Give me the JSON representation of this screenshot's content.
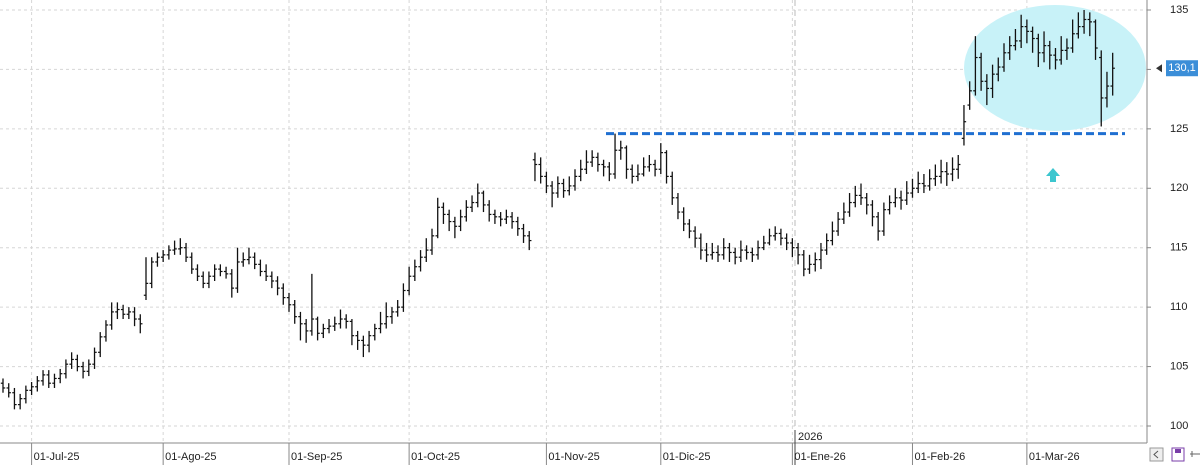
{
  "chart_data": {
    "type": "ohlc",
    "color": "#111111",
    "categories": [
      null,
      null,
      null,
      null,
      null,
      "01-Jul-25",
      null,
      null,
      null,
      null,
      null,
      null,
      null,
      null,
      null,
      null,
      null,
      null,
      null,
      null,
      null,
      null,
      null,
      null,
      null,
      null,
      null,
      null,
      "01-Ago-25",
      null,
      null,
      null,
      null,
      null,
      null,
      null,
      null,
      null,
      null,
      null,
      null,
      null,
      null,
      null,
      null,
      null,
      null,
      null,
      null,
      null,
      "01-Sep-25",
      null,
      null,
      null,
      null,
      null,
      null,
      null,
      null,
      null,
      null,
      null,
      null,
      null,
      null,
      null,
      null,
      null,
      null,
      null,
      null,
      "01-Oct-25",
      null,
      null,
      null,
      null,
      null,
      null,
      null,
      null,
      null,
      null,
      null,
      null,
      null,
      null,
      null,
      null,
      null,
      null,
      null,
      null,
      null,
      null,
      null,
      "01-Nov-25",
      null,
      null,
      null,
      null,
      null,
      null,
      null,
      null,
      null,
      null,
      null,
      null,
      null,
      null,
      null,
      null,
      null,
      null,
      null,
      "01-Dic-25",
      null,
      null,
      null,
      null,
      null,
      null,
      null,
      null,
      null,
      null,
      null,
      null,
      null,
      null,
      null,
      null,
      null,
      null,
      null,
      null,
      null,
      null,
      "01-Ene-26",
      null,
      null,
      null,
      null,
      null,
      null,
      null,
      null,
      null,
      null,
      null,
      null,
      null,
      null,
      null,
      null,
      null,
      null,
      null,
      null,
      "01-Feb-26",
      null,
      null,
      null,
      null,
      null,
      null,
      null,
      null,
      null,
      null,
      null,
      null,
      null,
      null,
      null,
      null,
      null,
      null,
      null,
      "01-Mar-26",
      null,
      null,
      null,
      null,
      null,
      null,
      null,
      null,
      null,
      null,
      null,
      null,
      null,
      null,
      null
    ],
    "ohlc": [
      [
        103.6,
        104.0,
        102.8,
        103.2
      ],
      [
        103.2,
        103.6,
        102.4,
        102.8
      ],
      [
        102.8,
        103.2,
        101.4,
        101.8
      ],
      [
        101.8,
        102.7,
        101.4,
        102.3
      ],
      [
        102.3,
        103.4,
        101.9,
        103.0
      ],
      [
        103.0,
        103.7,
        102.6,
        103.3
      ],
      [
        103.3,
        104.2,
        102.9,
        103.8
      ],
      [
        103.8,
        104.7,
        103.4,
        104.3
      ],
      [
        104.3,
        104.7,
        103.2,
        103.6
      ],
      [
        103.6,
        104.4,
        103.2,
        104.0
      ],
      [
        104.0,
        104.8,
        103.6,
        104.4
      ],
      [
        104.4,
        105.6,
        104.0,
        105.2
      ],
      [
        105.2,
        106.2,
        104.8,
        105.6
      ],
      [
        105.6,
        106.0,
        104.6,
        105.0
      ],
      [
        105.0,
        105.4,
        104.0,
        104.6
      ],
      [
        104.6,
        105.6,
        104.2,
        105.2
      ],
      [
        105.2,
        106.6,
        104.8,
        106.2
      ],
      [
        106.2,
        107.9,
        105.8,
        107.5
      ],
      [
        107.5,
        108.9,
        107.1,
        108.5
      ],
      [
        108.5,
        110.4,
        108.1,
        109.6
      ],
      [
        109.6,
        110.4,
        109.0,
        109.8
      ],
      [
        109.8,
        110.2,
        109.0,
        109.4
      ],
      [
        109.4,
        110.0,
        109.0,
        109.6
      ],
      [
        109.6,
        110.0,
        108.4,
        109.0
      ],
      [
        109.0,
        109.4,
        107.8,
        108.6
      ],
      [
        111.0,
        114.2,
        110.6,
        112.0
      ],
      [
        112.0,
        114.2,
        111.6,
        113.8
      ],
      [
        113.8,
        114.6,
        113.4,
        114.2
      ],
      [
        114.2,
        114.8,
        113.8,
        114.4
      ],
      [
        114.4,
        115.2,
        114.0,
        114.8
      ],
      [
        114.8,
        115.6,
        114.4,
        114.9
      ],
      [
        114.9,
        115.8,
        114.4,
        115.0
      ],
      [
        115.0,
        115.4,
        113.8,
        114.2
      ],
      [
        114.2,
        114.6,
        112.8,
        113.2
      ],
      [
        113.2,
        113.6,
        112.2,
        112.6
      ],
      [
        112.6,
        113.0,
        111.6,
        112.0
      ],
      [
        112.0,
        113.0,
        111.6,
        112.6
      ],
      [
        112.6,
        113.6,
        112.2,
        113.2
      ],
      [
        113.2,
        113.6,
        112.6,
        113.0
      ],
      [
        113.0,
        113.4,
        112.4,
        112.8
      ],
      [
        112.8,
        113.2,
        110.8,
        111.6
      ],
      [
        111.6,
        115.0,
        111.2,
        113.8
      ],
      [
        113.8,
        114.6,
        113.4,
        114.0
      ],
      [
        114.0,
        115.0,
        113.6,
        114.2
      ],
      [
        114.2,
        114.6,
        113.2,
        113.6
      ],
      [
        113.6,
        114.0,
        112.6,
        113.0
      ],
      [
        113.0,
        113.6,
        112.2,
        112.6
      ],
      [
        112.6,
        113.0,
        111.6,
        112.2
      ],
      [
        112.2,
        112.6,
        111.0,
        111.6
      ],
      [
        111.6,
        112.0,
        110.2,
        110.8
      ],
      [
        110.8,
        111.2,
        109.6,
        110.2
      ],
      [
        110.2,
        110.6,
        108.6,
        109.2
      ],
      [
        109.2,
        109.6,
        107.2,
        108.6
      ],
      [
        108.6,
        109.0,
        107.0,
        108.0
      ],
      [
        108.0,
        112.8,
        107.6,
        109.0
      ],
      [
        109.0,
        109.2,
        107.2,
        107.8
      ],
      [
        107.8,
        108.6,
        107.4,
        108.2
      ],
      [
        108.2,
        109.0,
        107.8,
        108.4
      ],
      [
        108.4,
        109.2,
        108.0,
        108.6
      ],
      [
        108.6,
        109.8,
        108.2,
        109.0
      ],
      [
        109.0,
        109.4,
        108.2,
        108.8
      ],
      [
        108.8,
        109.0,
        106.8,
        107.6
      ],
      [
        107.6,
        108.0,
        106.4,
        107.2
      ],
      [
        107.2,
        107.6,
        105.8,
        106.8
      ],
      [
        106.8,
        108.0,
        106.2,
        107.6
      ],
      [
        107.6,
        108.6,
        107.2,
        108.2
      ],
      [
        108.2,
        109.6,
        107.8,
        108.6
      ],
      [
        108.6,
        110.4,
        108.2,
        109.2
      ],
      [
        109.2,
        110.0,
        108.6,
        109.6
      ],
      [
        109.6,
        110.6,
        109.2,
        110.0
      ],
      [
        110.0,
        112.0,
        109.6,
        111.4
      ],
      [
        111.4,
        113.4,
        111.0,
        112.6
      ],
      [
        112.6,
        114.0,
        112.2,
        113.4
      ],
      [
        113.4,
        114.8,
        113.0,
        114.2
      ],
      [
        114.2,
        115.8,
        113.8,
        114.8
      ],
      [
        114.8,
        116.6,
        114.4,
        116.0
      ],
      [
        116.0,
        119.2,
        115.8,
        118.4
      ],
      [
        118.4,
        118.8,
        117.0,
        117.8
      ],
      [
        117.8,
        118.2,
        116.4,
        117.2
      ],
      [
        117.2,
        117.6,
        115.8,
        116.8
      ],
      [
        116.8,
        118.2,
        116.4,
        117.6
      ],
      [
        117.6,
        119.0,
        117.2,
        118.4
      ],
      [
        118.4,
        119.4,
        118.0,
        118.8
      ],
      [
        118.8,
        120.4,
        118.4,
        119.6
      ],
      [
        119.6,
        119.8,
        118.0,
        118.6
      ],
      [
        118.6,
        119.0,
        117.2,
        117.8
      ],
      [
        117.8,
        118.2,
        117.0,
        117.6
      ],
      [
        117.6,
        118.0,
        116.8,
        117.4
      ],
      [
        117.4,
        118.2,
        117.0,
        117.6
      ],
      [
        117.6,
        118.0,
        116.6,
        117.2
      ],
      [
        117.2,
        117.6,
        116.0,
        116.6
      ],
      [
        116.6,
        117.0,
        115.4,
        116.0
      ],
      [
        116.0,
        116.4,
        114.8,
        115.6
      ],
      [
        122.4,
        123.0,
        120.6,
        122.0
      ],
      [
        122.0,
        122.6,
        120.4,
        121.0
      ],
      [
        121.0,
        121.4,
        119.6,
        120.2
      ],
      [
        120.2,
        120.6,
        118.4,
        119.6
      ],
      [
        119.6,
        121.0,
        119.2,
        120.4
      ],
      [
        120.4,
        120.8,
        119.2,
        119.8
      ],
      [
        119.8,
        121.0,
        119.4,
        120.2
      ],
      [
        120.2,
        121.6,
        119.8,
        121.0
      ],
      [
        121.0,
        122.4,
        120.6,
        121.6
      ],
      [
        121.6,
        123.2,
        121.2,
        122.2
      ],
      [
        122.2,
        123.2,
        121.8,
        122.6
      ],
      [
        122.6,
        123.0,
        121.4,
        122.0
      ],
      [
        122.0,
        122.4,
        121.0,
        121.8
      ],
      [
        121.8,
        122.2,
        120.6,
        121.2
      ],
      [
        121.2,
        124.6,
        120.8,
        123.2
      ],
      [
        123.2,
        124.0,
        122.4,
        123.4
      ],
      [
        123.4,
        123.6,
        120.8,
        121.6
      ],
      [
        121.6,
        122.0,
        120.4,
        121.0
      ],
      [
        121.0,
        122.0,
        120.6,
        121.2
      ],
      [
        121.2,
        122.6,
        121.0,
        121.8
      ],
      [
        121.8,
        122.8,
        121.4,
        122.0
      ],
      [
        122.0,
        122.4,
        121.0,
        121.6
      ],
      [
        121.6,
        123.8,
        121.2,
        123.0
      ],
      [
        123.0,
        123.2,
        120.4,
        121.0
      ],
      [
        121.0,
        121.4,
        118.6,
        119.2
      ],
      [
        119.2,
        119.6,
        117.4,
        118.0
      ],
      [
        118.0,
        118.4,
        116.4,
        117.0
      ],
      [
        117.0,
        117.4,
        115.8,
        116.4
      ],
      [
        116.4,
        116.8,
        115.0,
        115.8
      ],
      [
        115.8,
        116.2,
        114.0,
        114.8
      ],
      [
        114.8,
        115.4,
        113.8,
        114.4
      ],
      [
        114.4,
        115.4,
        114.0,
        114.6
      ],
      [
        114.6,
        115.2,
        113.8,
        114.4
      ],
      [
        114.4,
        115.8,
        114.0,
        115.0
      ],
      [
        115.0,
        115.4,
        113.8,
        114.6
      ],
      [
        114.6,
        115.0,
        113.6,
        114.2
      ],
      [
        114.2,
        115.6,
        113.8,
        114.8
      ],
      [
        114.8,
        115.2,
        114.0,
        114.6
      ],
      [
        114.6,
        115.0,
        113.8,
        114.4
      ],
      [
        114.4,
        115.6,
        114.0,
        115.0
      ],
      [
        115.0,
        116.0,
        114.8,
        115.4
      ],
      [
        115.4,
        116.6,
        115.2,
        116.0
      ],
      [
        116.0,
        116.8,
        115.6,
        116.2
      ],
      [
        116.2,
        116.6,
        115.2,
        115.8
      ],
      [
        115.8,
        116.2,
        114.8,
        115.4
      ],
      [
        115.4,
        115.8,
        114.2,
        115.0
      ],
      [
        115.0,
        115.4,
        113.6,
        114.4
      ],
      [
        114.4,
        114.8,
        112.6,
        113.2
      ],
      [
        113.2,
        114.4,
        112.8,
        113.6
      ],
      [
        113.6,
        114.6,
        113.0,
        114.0
      ],
      [
        114.0,
        115.4,
        113.2,
        114.8
      ],
      [
        114.8,
        116.2,
        114.4,
        115.6
      ],
      [
        115.6,
        117.2,
        115.2,
        116.4
      ],
      [
        116.4,
        118.0,
        116.0,
        117.4
      ],
      [
        117.4,
        118.8,
        117.0,
        118.0
      ],
      [
        118.0,
        119.6,
        117.6,
        118.8
      ],
      [
        118.8,
        120.2,
        118.4,
        119.4
      ],
      [
        119.4,
        120.4,
        118.6,
        119.2
      ],
      [
        119.2,
        119.6,
        117.8,
        118.6
      ],
      [
        118.6,
        119.0,
        116.8,
        117.6
      ],
      [
        117.6,
        118.0,
        115.6,
        116.4
      ],
      [
        116.4,
        118.8,
        116.0,
        118.2
      ],
      [
        118.2,
        119.4,
        117.8,
        118.8
      ],
      [
        118.8,
        120.0,
        118.4,
        119.2
      ],
      [
        119.2,
        119.8,
        118.2,
        119.0
      ],
      [
        119.0,
        120.6,
        118.6,
        119.6
      ],
      [
        119.6,
        120.8,
        119.2,
        120.0
      ],
      [
        120.0,
        121.4,
        119.6,
        120.4
      ],
      [
        120.4,
        121.2,
        119.6,
        120.2
      ],
      [
        120.2,
        121.6,
        119.8,
        120.8
      ],
      [
        120.8,
        122.0,
        120.2,
        121.0
      ],
      [
        121.0,
        122.4,
        120.4,
        121.4
      ],
      [
        121.4,
        122.2,
        120.2,
        121.2
      ],
      [
        121.2,
        122.6,
        120.6,
        121.6
      ],
      [
        121.6,
        122.8,
        120.8,
        122.0
      ],
      [
        124.2,
        127.0,
        123.6,
        125.6
      ],
      [
        127.0,
        129.0,
        126.6,
        128.2
      ],
      [
        128.2,
        132.8,
        127.8,
        131.0
      ],
      [
        131.0,
        131.4,
        128.2,
        129.0
      ],
      [
        129.0,
        129.6,
        127.0,
        128.4
      ],
      [
        128.4,
        130.4,
        127.6,
        129.6
      ],
      [
        129.6,
        131.0,
        129.0,
        130.2
      ],
      [
        130.2,
        132.2,
        129.8,
        131.4
      ],
      [
        131.4,
        132.8,
        130.8,
        132.0
      ],
      [
        132.0,
        133.4,
        131.6,
        132.4
      ],
      [
        132.4,
        134.6,
        131.8,
        133.6
      ],
      [
        133.6,
        134.2,
        132.2,
        133.2
      ],
      [
        133.2,
        133.6,
        131.4,
        132.6
      ],
      [
        132.6,
        133.0,
        130.2,
        131.4
      ],
      [
        131.4,
        133.2,
        130.6,
        132.0
      ],
      [
        132.0,
        132.4,
        130.0,
        131.2
      ],
      [
        131.2,
        131.8,
        130.0,
        130.8
      ],
      [
        130.8,
        132.8,
        130.4,
        131.6
      ],
      [
        131.6,
        132.6,
        130.8,
        131.8
      ],
      [
        131.8,
        134.2,
        131.4,
        133.0
      ],
      [
        133.0,
        134.8,
        132.6,
        133.6
      ],
      [
        133.6,
        135.0,
        133.0,
        134.2
      ],
      [
        134.2,
        134.8,
        132.8,
        134.0
      ],
      [
        134.0,
        134.2,
        130.8,
        131.8
      ],
      [
        131.0,
        131.6,
        125.2,
        127.6
      ],
      [
        127.6,
        129.8,
        126.8,
        128.6
      ],
      [
        128.6,
        131.4,
        127.8,
        130.1
      ]
    ],
    "ylim": [
      98.57,
      135.84
    ],
    "yticks": [
      100,
      105,
      110,
      115,
      120,
      125,
      130,
      135
    ],
    "grid": true,
    "year_label": "2026",
    "support_level": 124.6,
    "support_color": "#1f6fd1",
    "last_price": {
      "value": 130.1,
      "label": "130,1"
    }
  }
}
